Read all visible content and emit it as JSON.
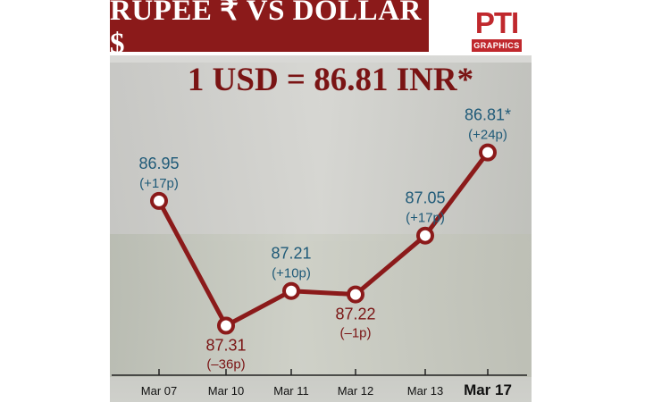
{
  "header": {
    "title": "RUPEE ₹   VS   DOLLAR $",
    "logo_text": "PTI",
    "logo_subtext": "GRAPHICS"
  },
  "headline": "1 USD = 86.81 INR*",
  "colors": {
    "banner": "#8b1a1a",
    "line": "#8b1a1a",
    "up_label": "#1f5a78",
    "down_label": "#7a1414",
    "logo": "#c0282d"
  },
  "chart_data": {
    "type": "line",
    "categories": [
      "Mar 07",
      "Mar 10",
      "Mar 11",
      "Mar 12",
      "Mar 13",
      "Mar 17"
    ],
    "values": [
      86.95,
      87.31,
      87.21,
      87.22,
      87.05,
      86.81
    ],
    "value_labels": [
      "86.95",
      "87.31",
      "87.21",
      "87.22",
      "87.05",
      "86.81*"
    ],
    "change_labels": [
      "(+17p)",
      "(–36p)",
      "(+10p)",
      "(–1p)",
      "(+17p)",
      "(+24p)"
    ],
    "label_position": [
      "above",
      "below",
      "above",
      "below",
      "above",
      "above"
    ],
    "label_color": [
      "up",
      "down",
      "up",
      "down",
      "up",
      "up"
    ],
    "highlight_last_category": true,
    "y_inverted": true,
    "ylim": [
      86.7,
      87.35
    ],
    "grid": false
  }
}
